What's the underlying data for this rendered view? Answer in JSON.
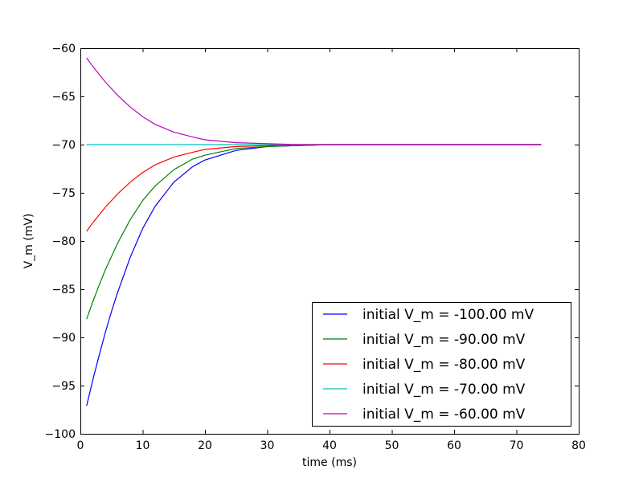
{
  "chart_data": {
    "type": "line",
    "xlabel": "time (ms)",
    "ylabel": "V_m (mV)",
    "xlim": [
      0,
      80
    ],
    "ylim": [
      -100,
      -60
    ],
    "xticks": [
      0,
      10,
      20,
      30,
      40,
      50,
      60,
      70,
      80
    ],
    "yticks": [
      -100,
      -95,
      -90,
      -85,
      -80,
      -75,
      -70,
      -65,
      -60
    ],
    "xtick_labels": [
      "0",
      "10",
      "20",
      "30",
      "40",
      "50",
      "60",
      "70",
      "80"
    ],
    "ytick_labels": [
      "−100",
      "−95",
      "−90",
      "−85",
      "−80",
      "−75",
      "−70",
      "−65",
      "−60"
    ],
    "grid": false,
    "legend_position": "lower-right",
    "x": [
      1,
      2,
      3,
      4,
      5,
      6,
      8,
      10,
      12,
      15,
      18,
      20,
      25,
      30,
      35,
      40,
      45,
      50,
      55,
      60,
      65,
      70,
      74
    ],
    "series": [
      {
        "name": "initial V_m = -100.00 mV",
        "color": "#0000ff",
        "values": [
          -97.1,
          -94.4,
          -91.9,
          -89.5,
          -87.3,
          -85.3,
          -81.7,
          -78.7,
          -76.4,
          -73.9,
          -72.3,
          -71.6,
          -70.6,
          -70.2,
          -70.1,
          -70.0,
          -70.0,
          -70.0,
          -70.0,
          -70.0,
          -70.0,
          -70.0,
          -70.0
        ]
      },
      {
        "name": "initial V_m = -90.00 mV",
        "color": "#008000",
        "values": [
          -88.1,
          -86.3,
          -84.6,
          -83.0,
          -81.6,
          -80.2,
          -77.8,
          -75.8,
          -74.3,
          -72.6,
          -71.5,
          -71.1,
          -70.4,
          -70.2,
          -70.1,
          -70.0,
          -70.0,
          -70.0,
          -70.0,
          -70.0,
          -70.0,
          -70.0,
          -70.0
        ]
      },
      {
        "name": "initial V_m = -80.00 mV",
        "color": "#ff0000",
        "values": [
          -79.0,
          -78.1,
          -77.3,
          -76.5,
          -75.8,
          -75.1,
          -73.9,
          -72.9,
          -72.1,
          -71.3,
          -70.8,
          -70.5,
          -70.2,
          -70.1,
          -70.0,
          -70.0,
          -70.0,
          -70.0,
          -70.0,
          -70.0,
          -70.0,
          -70.0,
          -70.0
        ]
      },
      {
        "name": "initial V_m = -70.00 mV",
        "color": "#00bfbf",
        "values": [
          -70.0,
          -70.0,
          -70.0,
          -70.0,
          -70.0,
          -70.0,
          -70.0,
          -70.0,
          -70.0,
          -70.0,
          -70.0,
          -70.0,
          -70.0,
          -70.0,
          -70.0,
          -70.0,
          -70.0,
          -70.0,
          -70.0,
          -70.0,
          -70.0,
          -70.0,
          -70.0
        ]
      },
      {
        "name": "initial V_m = -60.00 mV",
        "color": "#bf00bf",
        "values": [
          -61.0,
          -61.9,
          -62.7,
          -63.5,
          -64.2,
          -64.9,
          -66.1,
          -67.1,
          -67.9,
          -68.7,
          -69.2,
          -69.5,
          -69.8,
          -69.9,
          -70.0,
          -70.0,
          -70.0,
          -70.0,
          -70.0,
          -70.0,
          -70.0,
          -70.0,
          -70.0
        ]
      }
    ]
  }
}
